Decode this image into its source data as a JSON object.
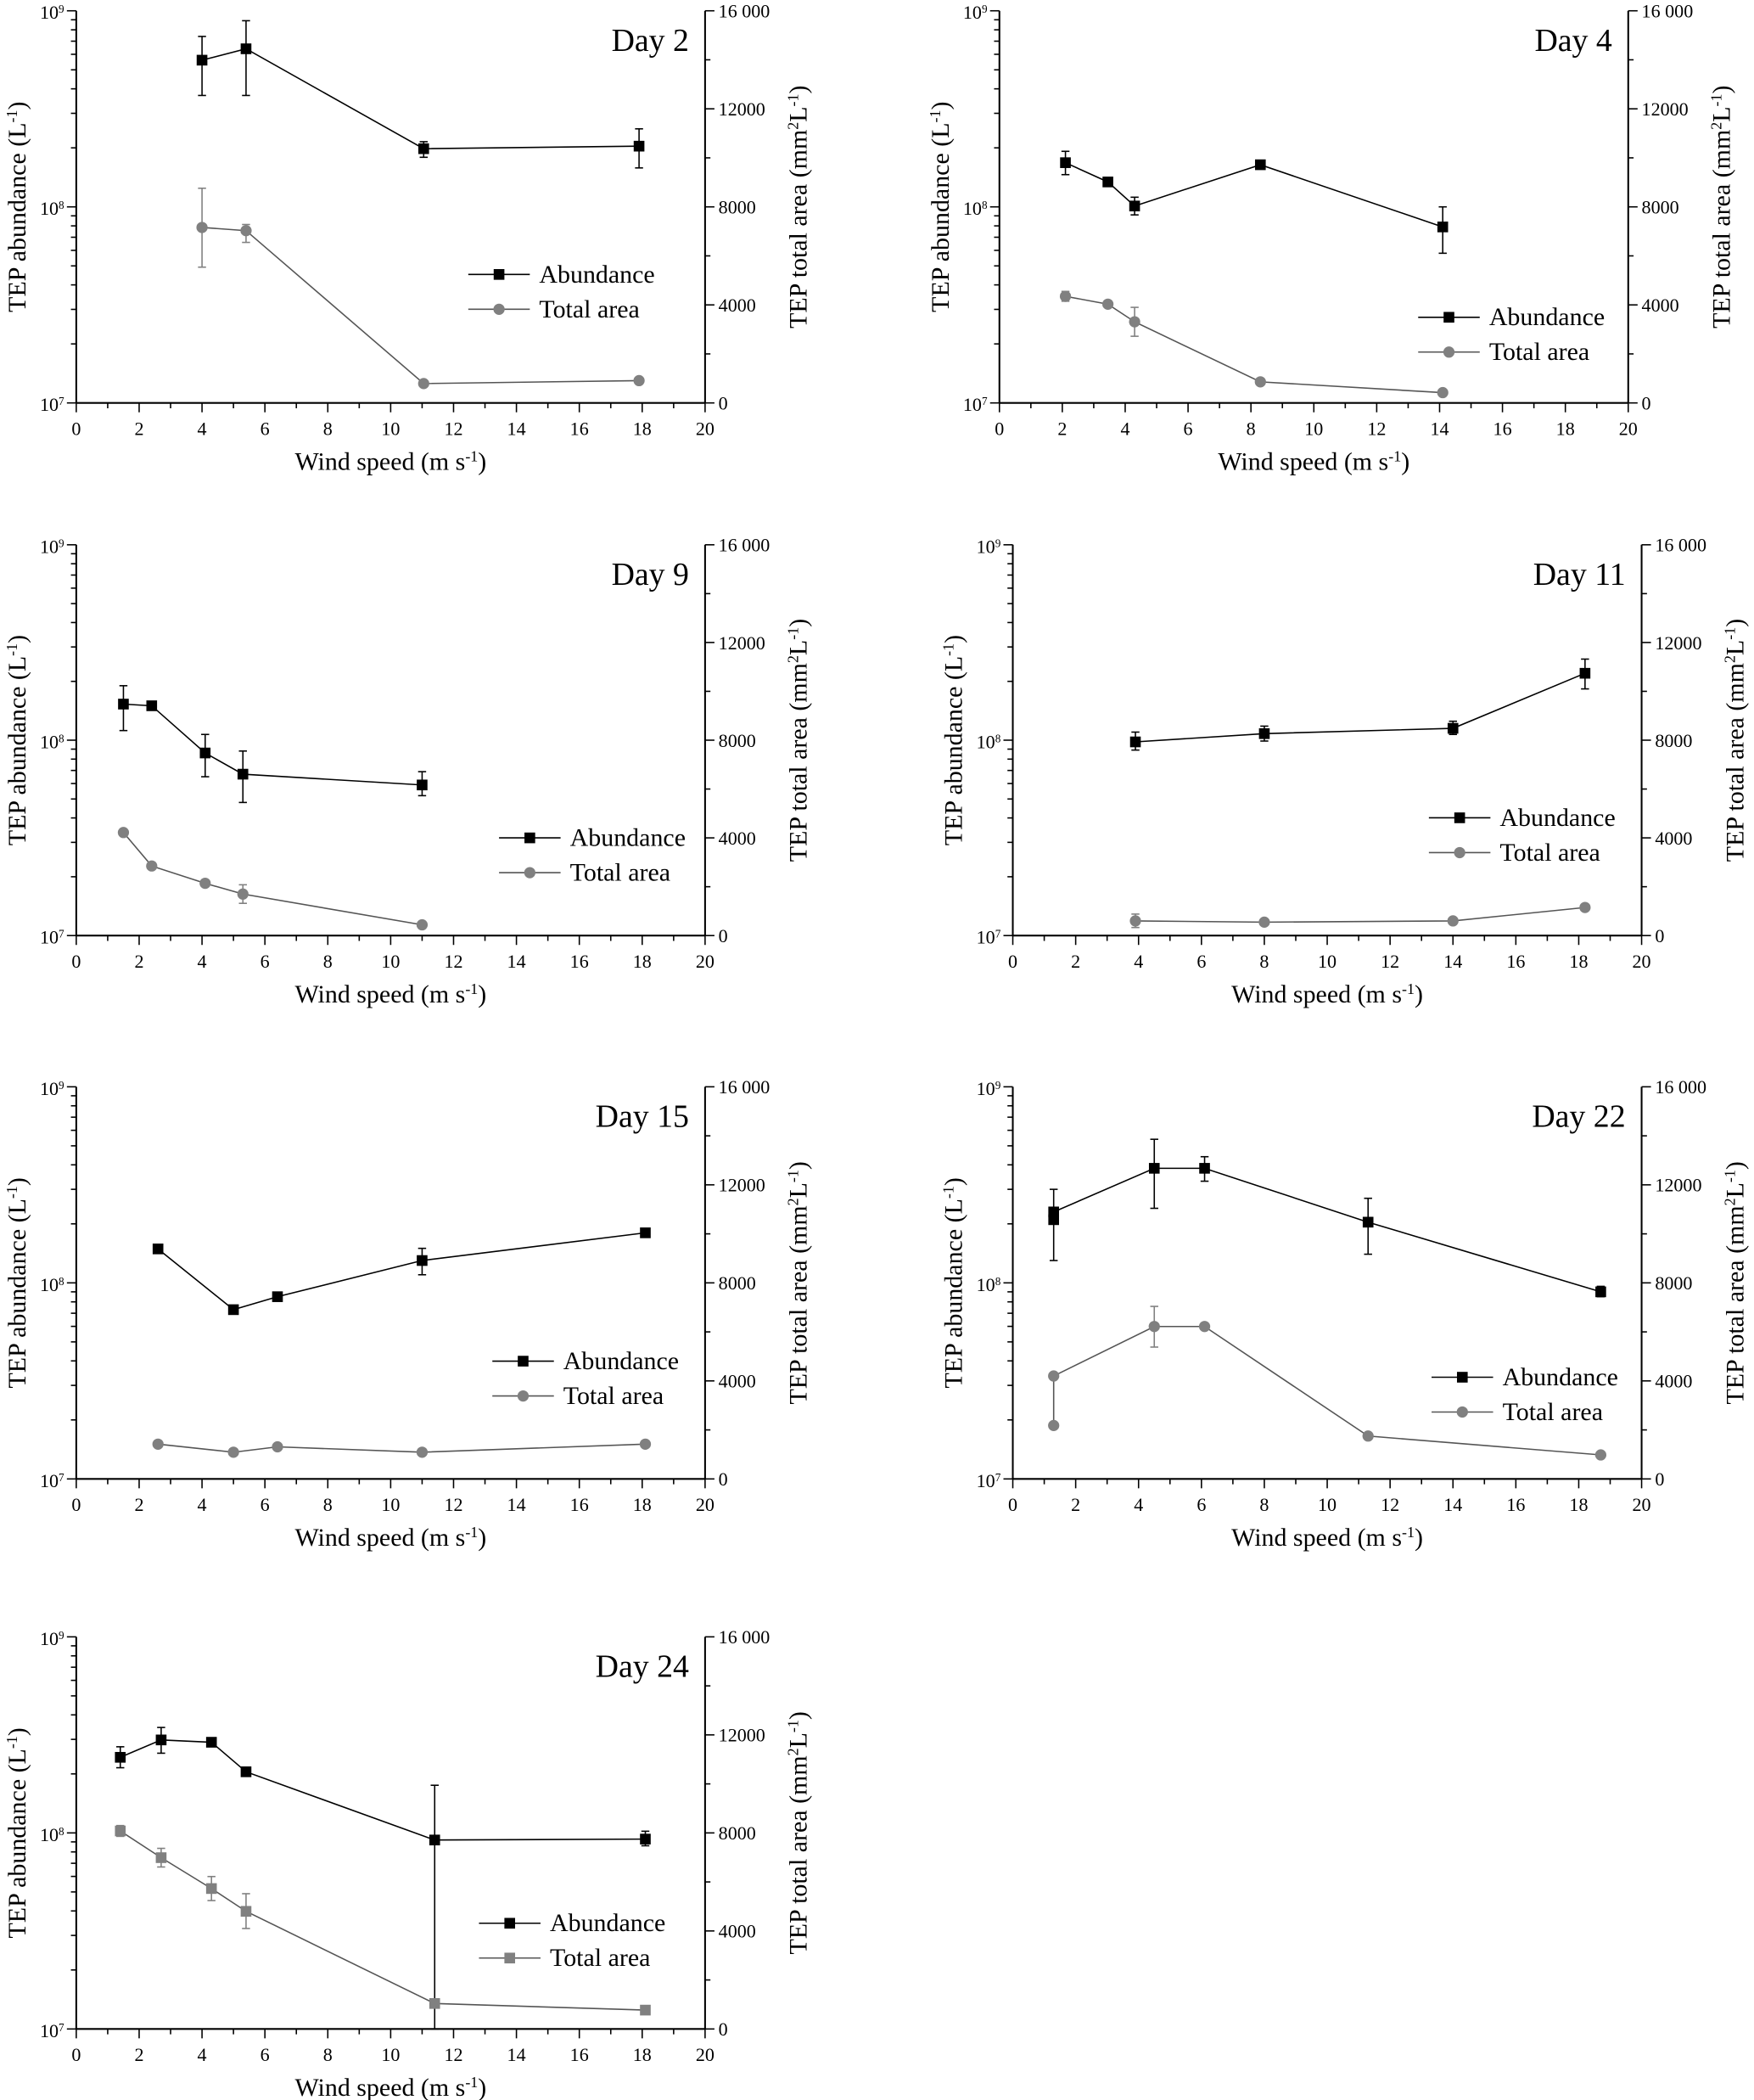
{
  "colors": {
    "abundance": "#000000",
    "total_area": "#808080",
    "axis": "#000000"
  },
  "axis_text": {
    "left_label": "TEP abundance (L",
    "left_sup": "-1",
    "left_end": ")",
    "right_label": "TEP total area (mm",
    "right_sup1": "2",
    "right_mid": "L",
    "right_sup2": "-1",
    "right_end": ")",
    "x_label": "Wind speed (m s",
    "x_sup": "-1",
    "x_end": ")",
    "left_ticks": [
      {
        "base": "10",
        "exp": "7"
      },
      {
        "base": "10",
        "exp": "8"
      },
      {
        "base": "10",
        "exp": "9"
      }
    ],
    "right_ticks": [
      "0",
      "4000",
      "8000",
      "12000",
      "16 000"
    ],
    "x_ticks": [
      "0",
      "2",
      "4",
      "6",
      "8",
      "10",
      "12",
      "14",
      "16",
      "18",
      "20"
    ]
  },
  "chart_data": [
    {
      "type": "line",
      "title": "Day 2",
      "xlabel": "Wind speed (m s-1)",
      "ylabel": "TEP abundance (L-1)",
      "y2label": "TEP total area (mm2L-1)",
      "xlim": [
        0,
        20
      ],
      "ylim": [
        10000000.0,
        1000000000.0
      ],
      "yscale": "log",
      "y2lim": [
        0,
        16000
      ],
      "legend": "center-right",
      "series": [
        {
          "name": "Abundance",
          "axis": "left",
          "marker": "square",
          "points": [
            {
              "x": 4.0,
              "y": 560000000.0,
              "err": [
                370000000.0,
                740000000.0
              ]
            },
            {
              "x": 5.4,
              "y": 640000000.0,
              "err": [
                370000000.0,
                890000000.0
              ]
            },
            {
              "x": 11.05,
              "y": 198000000.0,
              "err": [
                179000000.0,
                215000000.0
              ]
            },
            {
              "x": 17.9,
              "y": 204000000.0,
              "err": [
                158000000.0,
                250000000.0
              ]
            }
          ]
        },
        {
          "name": "Total area",
          "axis": "right",
          "marker": "circle",
          "points": [
            {
              "x": 4.0,
              "y": 7160,
              "err": [
                5540,
                8760
              ]
            },
            {
              "x": 5.4,
              "y": 7030,
              "err": [
                6550,
                7280
              ]
            },
            {
              "x": 11.05,
              "y": 790
            },
            {
              "x": 17.9,
              "y": 910
            }
          ]
        }
      ]
    },
    {
      "type": "line",
      "title": "Day 4",
      "xlabel": "Wind speed (m s-1)",
      "ylabel": "TEP abundance (L-1)",
      "y2label": "TEP total area (mm2L-1)",
      "xlim": [
        0,
        20
      ],
      "ylim": [
        10000000.0,
        1000000000.0
      ],
      "yscale": "log",
      "y2lim": [
        0,
        16000
      ],
      "legend": "center-right",
      "series": [
        {
          "name": "Abundance",
          "axis": "left",
          "marker": "square",
          "points": [
            {
              "x": 2.1,
              "y": 168000000.0,
              "err": [
                146000000.0,
                192000000.0
              ]
            },
            {
              "x": 3.45,
              "y": 134000000.0
            },
            {
              "x": 4.3,
              "y": 101000000.0,
              "err": [
                91000000.0,
                112000000.0
              ]
            },
            {
              "x": 8.3,
              "y": 164000000.0
            },
            {
              "x": 14.1,
              "y": 79000000.0,
              "err": [
                58000000.0,
                100000000.0
              ]
            }
          ]
        },
        {
          "name": "Total area",
          "axis": "right",
          "marker": "circle",
          "points": [
            {
              "x": 2.1,
              "y": 4350,
              "err": [
                4150,
                4550
              ]
            },
            {
              "x": 3.45,
              "y": 4030
            },
            {
              "x": 4.3,
              "y": 3310,
              "err": [
                2720,
                3900
              ]
            },
            {
              "x": 8.3,
              "y": 860
            },
            {
              "x": 14.1,
              "y": 420
            }
          ]
        }
      ]
    },
    {
      "type": "line",
      "title": "Day 9",
      "xlabel": "Wind speed (m s-1)",
      "ylabel": "TEP abundance (L-1)",
      "y2label": "TEP total area (mm2L-1)",
      "xlim": [
        0,
        20
      ],
      "ylim": [
        10000000.0,
        1000000000.0
      ],
      "yscale": "log",
      "y2lim": [
        0,
        16000
      ],
      "legend": "center-right",
      "series": [
        {
          "name": "Abundance",
          "axis": "left",
          "marker": "square",
          "points": [
            {
              "x": 1.5,
              "y": 153000000.0,
              "err": [
                112000000.0,
                190000000.0
              ]
            },
            {
              "x": 2.4,
              "y": 150000000.0
            },
            {
              "x": 4.1,
              "y": 86000000.0,
              "err": [
                65000000.0,
                107000000.0
              ]
            },
            {
              "x": 5.3,
              "y": 67000000.0,
              "err": [
                48000000.0,
                88000000.0
              ]
            },
            {
              "x": 11.0,
              "y": 59000000.0,
              "err": [
                52000000.0,
                69000000.0
              ]
            }
          ]
        },
        {
          "name": "Total area",
          "axis": "right",
          "marker": "circle",
          "points": [
            {
              "x": 1.5,
              "y": 4220
            },
            {
              "x": 2.4,
              "y": 2850
            },
            {
              "x": 4.1,
              "y": 2140
            },
            {
              "x": 5.3,
              "y": 1700,
              "err": [
                1320,
                2080
              ]
            },
            {
              "x": 11.0,
              "y": 440
            }
          ]
        }
      ]
    },
    {
      "type": "line",
      "title": "Day 11",
      "xlabel": "Wind speed (m s-1)",
      "ylabel": "TEP abundance (L-1)",
      "y2label": "TEP total area (mm2L-1)",
      "xlim": [
        0,
        20
      ],
      "ylim": [
        10000000.0,
        1000000000.0
      ],
      "yscale": "log",
      "y2lim": [
        0,
        16000
      ],
      "legend": "center-right",
      "series": [
        {
          "name": "Abundance",
          "axis": "left",
          "marker": "square",
          "points": [
            {
              "x": 3.9,
              "y": 98000000.0,
              "err": [
                89000000.0,
                110000000.0
              ]
            },
            {
              "x": 8.0,
              "y": 108000000.0,
              "err": [
                99000000.0,
                118000000.0
              ]
            },
            {
              "x": 14.0,
              "y": 115000000.0,
              "err": [
                107000000.0,
                125000000.0
              ]
            },
            {
              "x": 18.2,
              "y": 220000000.0,
              "err": [
                183000000.0,
                260000000.0
              ]
            }
          ]
        },
        {
          "name": "Total area",
          "axis": "right",
          "marker": "circle",
          "points": [
            {
              "x": 3.9,
              "y": 600,
              "err": [
                330,
                880
              ]
            },
            {
              "x": 8.0,
              "y": 550
            },
            {
              "x": 14.0,
              "y": 600
            },
            {
              "x": 18.2,
              "y": 1150
            }
          ]
        }
      ]
    },
    {
      "type": "line",
      "title": "Day 15",
      "xlabel": "Wind speed (m s-1)",
      "ylabel": "TEP abundance (L-1)",
      "y2label": "TEP total area (mm2L-1)",
      "xlim": [
        0,
        20
      ],
      "ylim": [
        10000000.0,
        1000000000.0
      ],
      "yscale": "log",
      "y2lim": [
        0,
        16000
      ],
      "legend": "center-right",
      "series": [
        {
          "name": "Abundance",
          "axis": "left",
          "marker": "square",
          "points": [
            {
              "x": 2.6,
              "y": 149000000.0
            },
            {
              "x": 5.0,
              "y": 73000000.0
            },
            {
              "x": 6.4,
              "y": 85000000.0
            },
            {
              "x": 11.0,
              "y": 130000000.0,
              "err": [
                110000000.0,
                150000000.0
              ]
            },
            {
              "x": 18.1,
              "y": 180000000.0
            }
          ]
        },
        {
          "name": "Total area",
          "axis": "right",
          "marker": "circle",
          "points": [
            {
              "x": 2.6,
              "y": 1420
            },
            {
              "x": 5.0,
              "y": 1090
            },
            {
              "x": 6.4,
              "y": 1310
            },
            {
              "x": 11.0,
              "y": 1090
            },
            {
              "x": 18.1,
              "y": 1420
            }
          ]
        }
      ]
    },
    {
      "type": "line",
      "title": "Day 22",
      "xlabel": "Wind speed (m s-1)",
      "ylabel": "TEP abundance (L-1)",
      "y2label": "TEP total area (mm2L-1)",
      "xlim": [
        0,
        20
      ],
      "ylim": [
        10000000.0,
        1000000000.0
      ],
      "yscale": "log",
      "y2lim": [
        0,
        16000
      ],
      "legend": "center-right",
      "series": [
        {
          "name": "Abundance",
          "axis": "left",
          "marker": "square",
          "points": [
            {
              "x": 1.3,
              "y": 210000000.0,
              "err": [
                130000000.0,
                300000000.0
              ]
            },
            {
              "x": 1.3,
              "y": 230000000.0
            },
            {
              "x": 4.5,
              "y": 384000000.0,
              "err": [
                240000000.0,
                540000000.0
              ]
            },
            {
              "x": 6.1,
              "y": 384000000.0,
              "err": [
                330000000.0,
                440000000.0
              ]
            },
            {
              "x": 11.3,
              "y": 204000000.0,
              "err": [
                140000000.0,
                270000000.0
              ]
            },
            {
              "x": 18.7,
              "y": 90000000.0,
              "err": [
                85000000.0,
                96000000.0
              ]
            }
          ]
        },
        {
          "name": "Total area",
          "axis": "right",
          "marker": "circle",
          "points": [
            {
              "x": 1.3,
              "y": 2180
            },
            {
              "x": 1.3,
              "y": 4200
            },
            {
              "x": 4.5,
              "y": 6220,
              "err": [
                5380,
                7040
              ]
            },
            {
              "x": 6.1,
              "y": 6220
            },
            {
              "x": 11.3,
              "y": 1750
            },
            {
              "x": 18.7,
              "y": 980
            }
          ]
        }
      ]
    },
    {
      "type": "line",
      "title": "Day 24",
      "xlabel": "Wind speed (m s-1)",
      "ylabel": "TEP abundance (L-1)",
      "y2label": "TEP total area (mm2L-1)",
      "xlim": [
        0,
        20
      ],
      "ylim": [
        10000000.0,
        1000000000.0
      ],
      "yscale": "log",
      "y2lim": [
        0,
        16000
      ],
      "legend": "bottom-right",
      "series": [
        {
          "name": "Abundance",
          "axis": "left",
          "marker": "square",
          "points": [
            {
              "x": 1.4,
              "y": 243000000.0,
              "err": [
                215000000.0,
                275000000.0
              ]
            },
            {
              "x": 2.7,
              "y": 298000000.0,
              "err": [
                255000000.0,
                345000000.0
              ]
            },
            {
              "x": 4.3,
              "y": 290000000.0
            },
            {
              "x": 5.4,
              "y": 205000000.0
            },
            {
              "x": 11.4,
              "y": 92000000.0,
              "err": [
                10000000.0,
                175000000.0
              ]
            },
            {
              "x": 18.1,
              "y": 93000000.0,
              "err": [
                86000000.0,
                102000000.0
              ]
            }
          ]
        },
        {
          "name": "Total area",
          "axis": "right",
          "marker": "square",
          "points": [
            {
              "x": 1.4,
              "y": 8080,
              "err": [
                7860,
                8300
              ]
            },
            {
              "x": 2.7,
              "y": 6990,
              "err": [
                6610,
                7370
              ]
            },
            {
              "x": 4.3,
              "y": 5730,
              "err": [
                5240,
                6220
              ]
            },
            {
              "x": 5.4,
              "y": 4800,
              "err": [
                4100,
                5520
              ]
            },
            {
              "x": 11.4,
              "y": 1040
            },
            {
              "x": 18.1,
              "y": 770
            }
          ]
        }
      ]
    }
  ]
}
